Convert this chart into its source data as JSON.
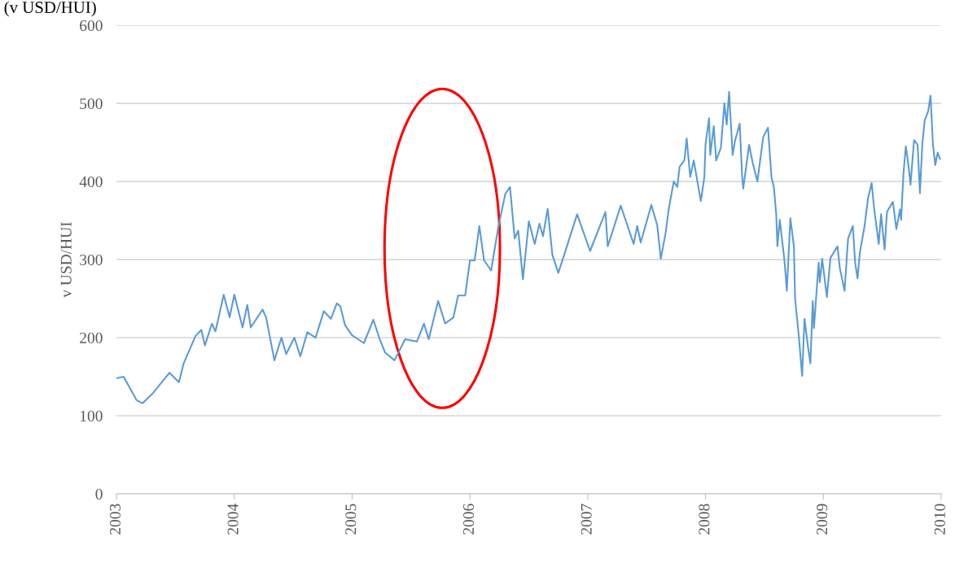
{
  "chart_data": {
    "type": "line",
    "title": "(v USD/HUI)",
    "ylabel": "v USD/HUI",
    "x": [
      2003.0,
      2003.06,
      2003.17,
      2003.22,
      2003.31,
      2003.45,
      2003.53,
      2003.57,
      2003.67,
      2003.72,
      2003.75,
      2003.81,
      2003.84,
      2003.91,
      2003.96,
      2004.0,
      2004.07,
      2004.11,
      2004.14,
      2004.24,
      2004.27,
      2004.34,
      2004.4,
      2004.44,
      2004.51,
      2004.56,
      2004.62,
      2004.69,
      2004.76,
      2004.82,
      2004.87,
      2004.9,
      2004.94,
      2005.0,
      2005.1,
      2005.18,
      2005.23,
      2005.28,
      2005.36,
      2005.45,
      2005.55,
      2005.61,
      2005.65,
      2005.73,
      2005.79,
      2005.86,
      2005.9,
      2005.96,
      2006.0,
      2006.04,
      2006.08,
      2006.12,
      2006.18,
      2006.24,
      2006.3,
      2006.34,
      2006.38,
      2006.41,
      2006.45,
      2006.5,
      2006.55,
      2006.59,
      2006.62,
      2006.66,
      2006.7,
      2006.75,
      2006.8,
      2006.91,
      2007.02,
      2007.15,
      2007.17,
      2007.28,
      2007.39,
      2007.42,
      2007.45,
      2007.54,
      2007.59,
      2007.62,
      2007.66,
      2007.69,
      2007.73,
      2007.76,
      2007.78,
      2007.82,
      2007.84,
      2007.87,
      2007.9,
      2007.96,
      2007.99,
      2008.0,
      2008.03,
      2008.04,
      2008.07,
      2008.09,
      2008.13,
      2008.16,
      2008.18,
      2008.2,
      2008.23,
      2008.25,
      2008.29,
      2008.31,
      2008.32,
      2008.37,
      2008.4,
      2008.44,
      2008.49,
      2008.53,
      2008.56,
      2008.58,
      2008.6,
      2008.61,
      2008.63,
      2008.67,
      2008.69,
      2008.72,
      2008.75,
      2008.76,
      2008.79,
      2008.82,
      2008.84,
      2008.87,
      2008.89,
      2008.91,
      2008.92,
      2008.96,
      2008.97,
      2008.99,
      2009.03,
      2009.06,
      2009.12,
      2009.14,
      2009.18,
      2009.21,
      2009.25,
      2009.27,
      2009.29,
      2009.31,
      2009.35,
      2009.38,
      2009.41,
      2009.43,
      2009.47,
      2009.49,
      2009.52,
      2009.54,
      2009.59,
      2009.62,
      2009.65,
      2009.66,
      2009.68,
      2009.7,
      2009.72,
      2009.74,
      2009.77,
      2009.8,
      2009.82,
      2009.84,
      2009.86,
      2009.89,
      2009.91,
      2009.93,
      2009.95,
      2009.97,
      2009.99
    ],
    "series": [
      {
        "color": "#5b9bd5",
        "values": [
          148,
          150,
          120,
          116,
          129,
          155,
          143,
          167,
          202,
          210,
          190,
          218,
          208,
          255,
          226,
          255,
          213,
          242,
          213,
          236,
          226,
          171,
          200,
          179,
          200,
          176,
          207,
          200,
          234,
          224,
          244,
          240,
          216,
          203,
          193,
          223,
          200,
          181,
          171,
          198,
          195,
          218,
          198,
          247,
          218,
          226,
          254,
          254,
          299,
          299,
          343,
          299,
          286,
          341,
          384,
          393,
          327,
          337,
          275,
          349,
          320,
          346,
          330,
          365,
          306,
          283,
          306,
          358,
          311,
          361,
          317,
          369,
          320,
          343,
          322,
          370,
          344,
          301,
          333,
          367,
          400,
          393,
          419,
          427,
          455,
          406,
          427,
          375,
          406,
          448,
          481,
          434,
          471,
          427,
          443,
          500,
          473,
          515,
          434,
          452,
          474,
          408,
          391,
          447,
          424,
          400,
          457,
          469,
          405,
          393,
          358,
          317,
          351,
          299,
          260,
          353,
          317,
          250,
          205,
          151,
          224,
          188,
          167,
          247,
          212,
          296,
          271,
          301,
          252,
          302,
          317,
          289,
          260,
          327,
          343,
          296,
          276,
          309,
          343,
          379,
          398,
          367,
          320,
          358,
          313,
          361,
          374,
          339,
          364,
          351,
          410,
          445,
          424,
          396,
          453,
          447,
          385,
          448,
          478,
          490,
          510,
          448,
          421,
          437,
          429
        ]
      }
    ],
    "xlim": [
      2003,
      2010
    ],
    "xticks": [
      2003,
      2004,
      2005,
      2006,
      2007,
      2008,
      2009,
      2010
    ],
    "ylim": [
      0,
      600
    ],
    "yticks": [
      0,
      100,
      200,
      300,
      400,
      500,
      600
    ],
    "grid": "y"
  }
}
